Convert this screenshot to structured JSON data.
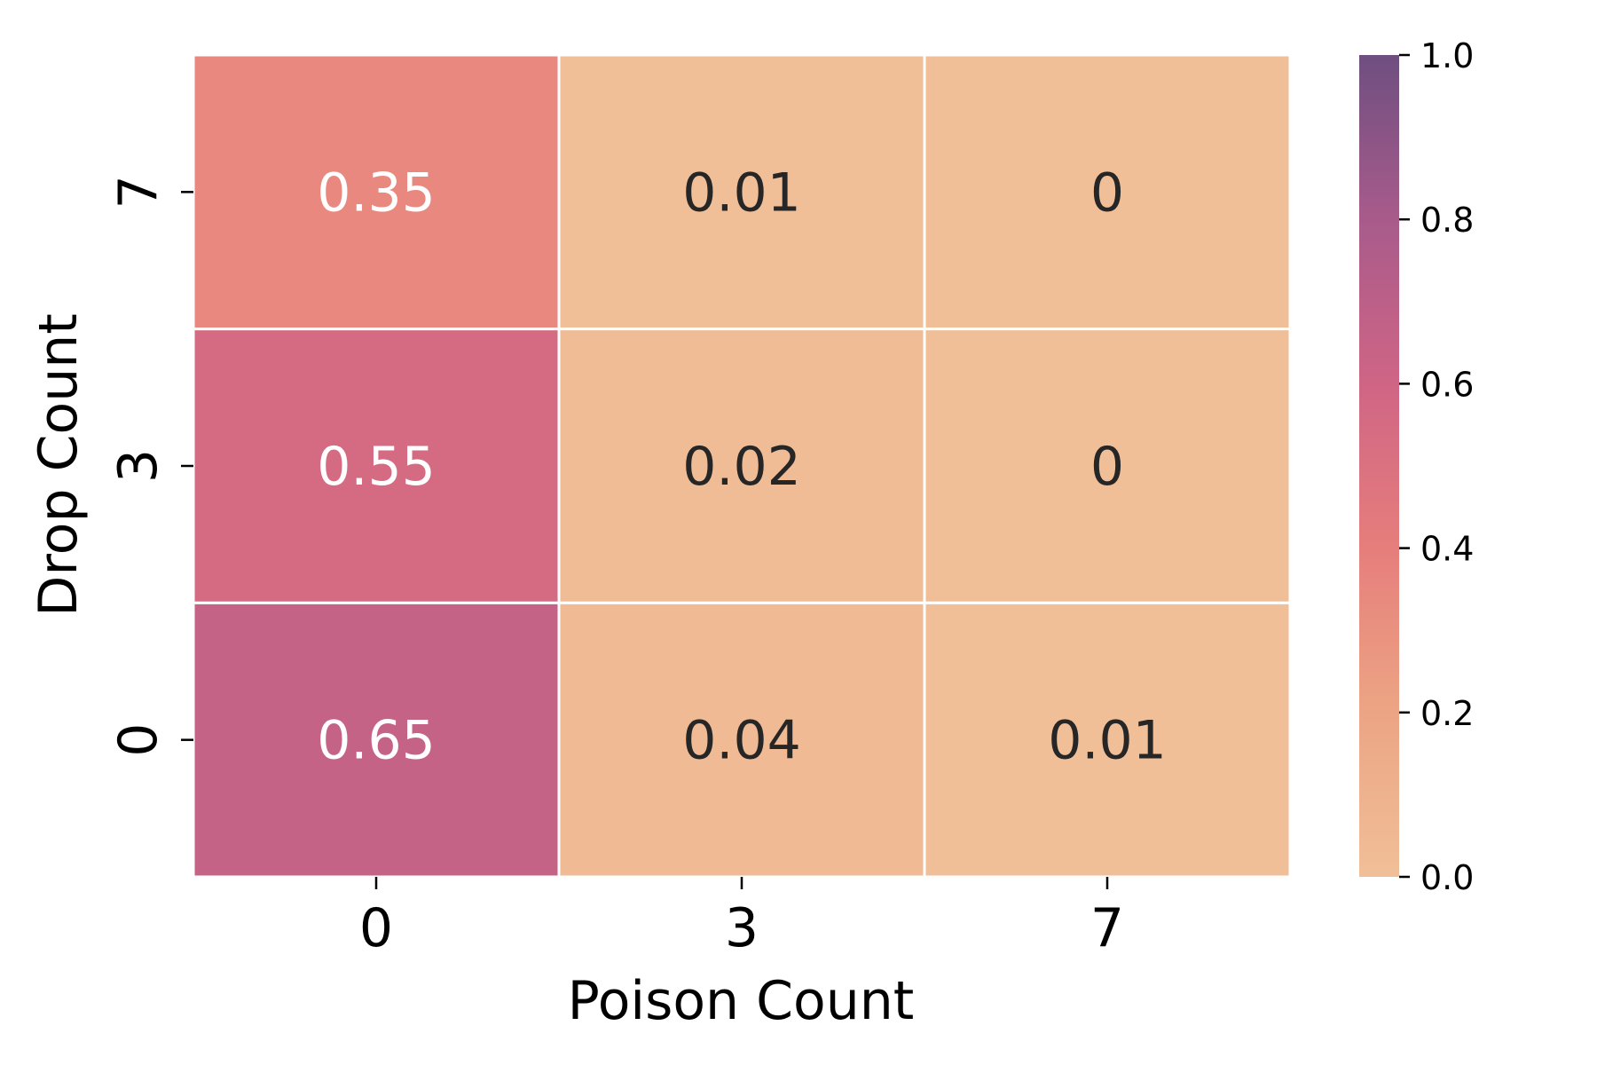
{
  "chart_data": {
    "type": "heatmap",
    "title": "",
    "xlabel": "Poison Count",
    "ylabel": "Drop Count",
    "x_categories": [
      "0",
      "3",
      "7"
    ],
    "y_categories": [
      "7",
      "3",
      "0"
    ],
    "values": [
      [
        0.35,
        0.01,
        0
      ],
      [
        0.55,
        0.02,
        0
      ],
      [
        0.65,
        0.04,
        0.01
      ]
    ],
    "cell_labels": [
      [
        "0.35",
        "0.01",
        "0"
      ],
      [
        "0.55",
        "0.02",
        "0"
      ],
      [
        "0.65",
        "0.04",
        "0.01"
      ]
    ],
    "colorbar": {
      "range": [
        0.0,
        1.0
      ],
      "ticks": [
        0.0,
        0.2,
        0.4,
        0.6,
        0.8,
        1.0
      ],
      "tick_labels": [
        "0.0",
        "0.2",
        "0.4",
        "0.6",
        "0.8",
        "1.0"
      ],
      "colors": [
        "#f0bf98",
        "#eca584",
        "#e67e7c",
        "#cf6585",
        "#a85b8b",
        "#6e4f80"
      ]
    },
    "grid": false,
    "legend": "colorbar-right"
  }
}
